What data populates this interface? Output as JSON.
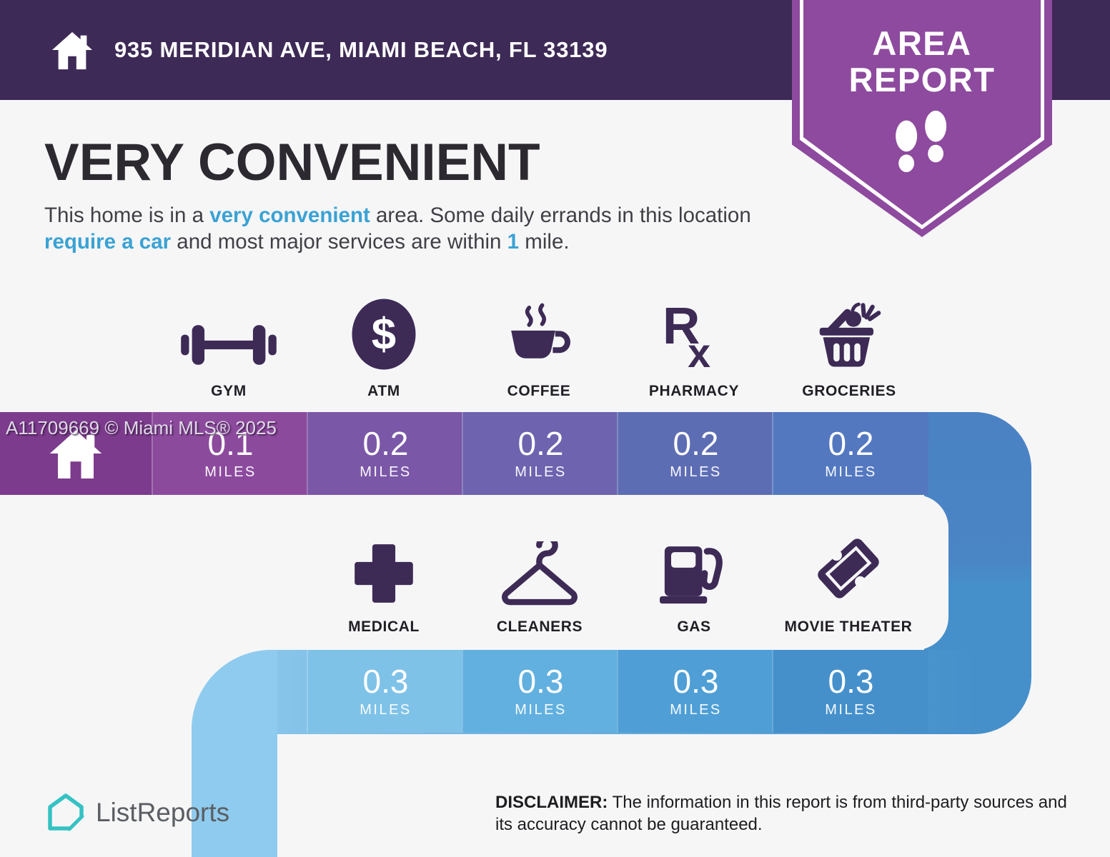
{
  "header": {
    "address": "935 MERIDIAN AVE, MIAMI BEACH, FL 33139",
    "home_icon": "home-icon"
  },
  "badge": {
    "title_line1": "AREA",
    "title_line2": "REPORT",
    "footprints_icon": "footprints-icon"
  },
  "intro": {
    "title": "VERY CONVENIENT",
    "segments": [
      {
        "text": "This home is in a ",
        "highlight": false
      },
      {
        "text": "very convenient",
        "highlight": true
      },
      {
        "text": " area. Some daily errands in this location ",
        "highlight": false
      },
      {
        "text": "require a car",
        "highlight": true
      },
      {
        "text": " and most major services are within ",
        "highlight": false
      },
      {
        "text": "1",
        "highlight": true
      },
      {
        "text": " mile.",
        "highlight": false
      }
    ]
  },
  "watermark": "A11709669 © Miami MLS® 2025",
  "row1": {
    "home_cell": {
      "icon": "home-icon",
      "color": "#7c3b8c"
    },
    "items": [
      {
        "label": "GYM",
        "icon": "dumbbell-icon",
        "value": "0.1",
        "unit": "MILES",
        "cell_color": "#8c4a9d"
      },
      {
        "label": "ATM",
        "icon": "dollar-icon",
        "value": "0.2",
        "unit": "MILES",
        "cell_color": "#7b57a7"
      },
      {
        "label": "COFFEE",
        "icon": "coffee-cup-icon",
        "value": "0.2",
        "unit": "MILES",
        "cell_color": "#6d63ae"
      },
      {
        "label": "PHARMACY",
        "icon": "rx-icon",
        "value": "0.2",
        "unit": "MILES",
        "cell_color": "#5d6db3"
      },
      {
        "label": "GROCERIES",
        "icon": "grocery-basket-icon",
        "value": "0.2",
        "unit": "MILES",
        "cell_color": "#5378c0"
      }
    ]
  },
  "row2": {
    "items": [
      {
        "label": "MEDICAL",
        "icon": "medical-cross-icon",
        "value": "0.3",
        "unit": "MILES",
        "cell_color": "#7fc2e8"
      },
      {
        "label": "CLEANERS",
        "icon": "hanger-icon",
        "value": "0.3",
        "unit": "MILES",
        "cell_color": "#62b0df"
      },
      {
        "label": "GAS",
        "icon": "gas-pump-icon",
        "value": "0.3",
        "unit": "MILES",
        "cell_color": "#4f9fd6"
      },
      {
        "label": "MOVIE THEATER",
        "icon": "ticket-icon",
        "value": "0.3",
        "unit": "MILES",
        "cell_color": "#4590cb"
      }
    ]
  },
  "footer": {
    "brand": "ListReports",
    "logo_icon": "listreports-logo",
    "disclaimer_label": "DISCLAIMER:",
    "disclaimer_text": " The information in this report is from third-party sources and its accuracy cannot be guaranteed."
  },
  "colors": {
    "page_bg": "#f6f6f7",
    "header_bg": "#3d2a56",
    "badge_purple": "#8d4a9e",
    "icon_purple": "#3d2b56",
    "accent_blue": "#3aa2d4",
    "band1_gradient_start": "#7c3b8c",
    "band1_gradient_end": "#4a82c3",
    "band2_gradient_start": "#8fcbee",
    "band2_gradient_end": "#4590cb",
    "logo_teal": "#35c2c3"
  }
}
